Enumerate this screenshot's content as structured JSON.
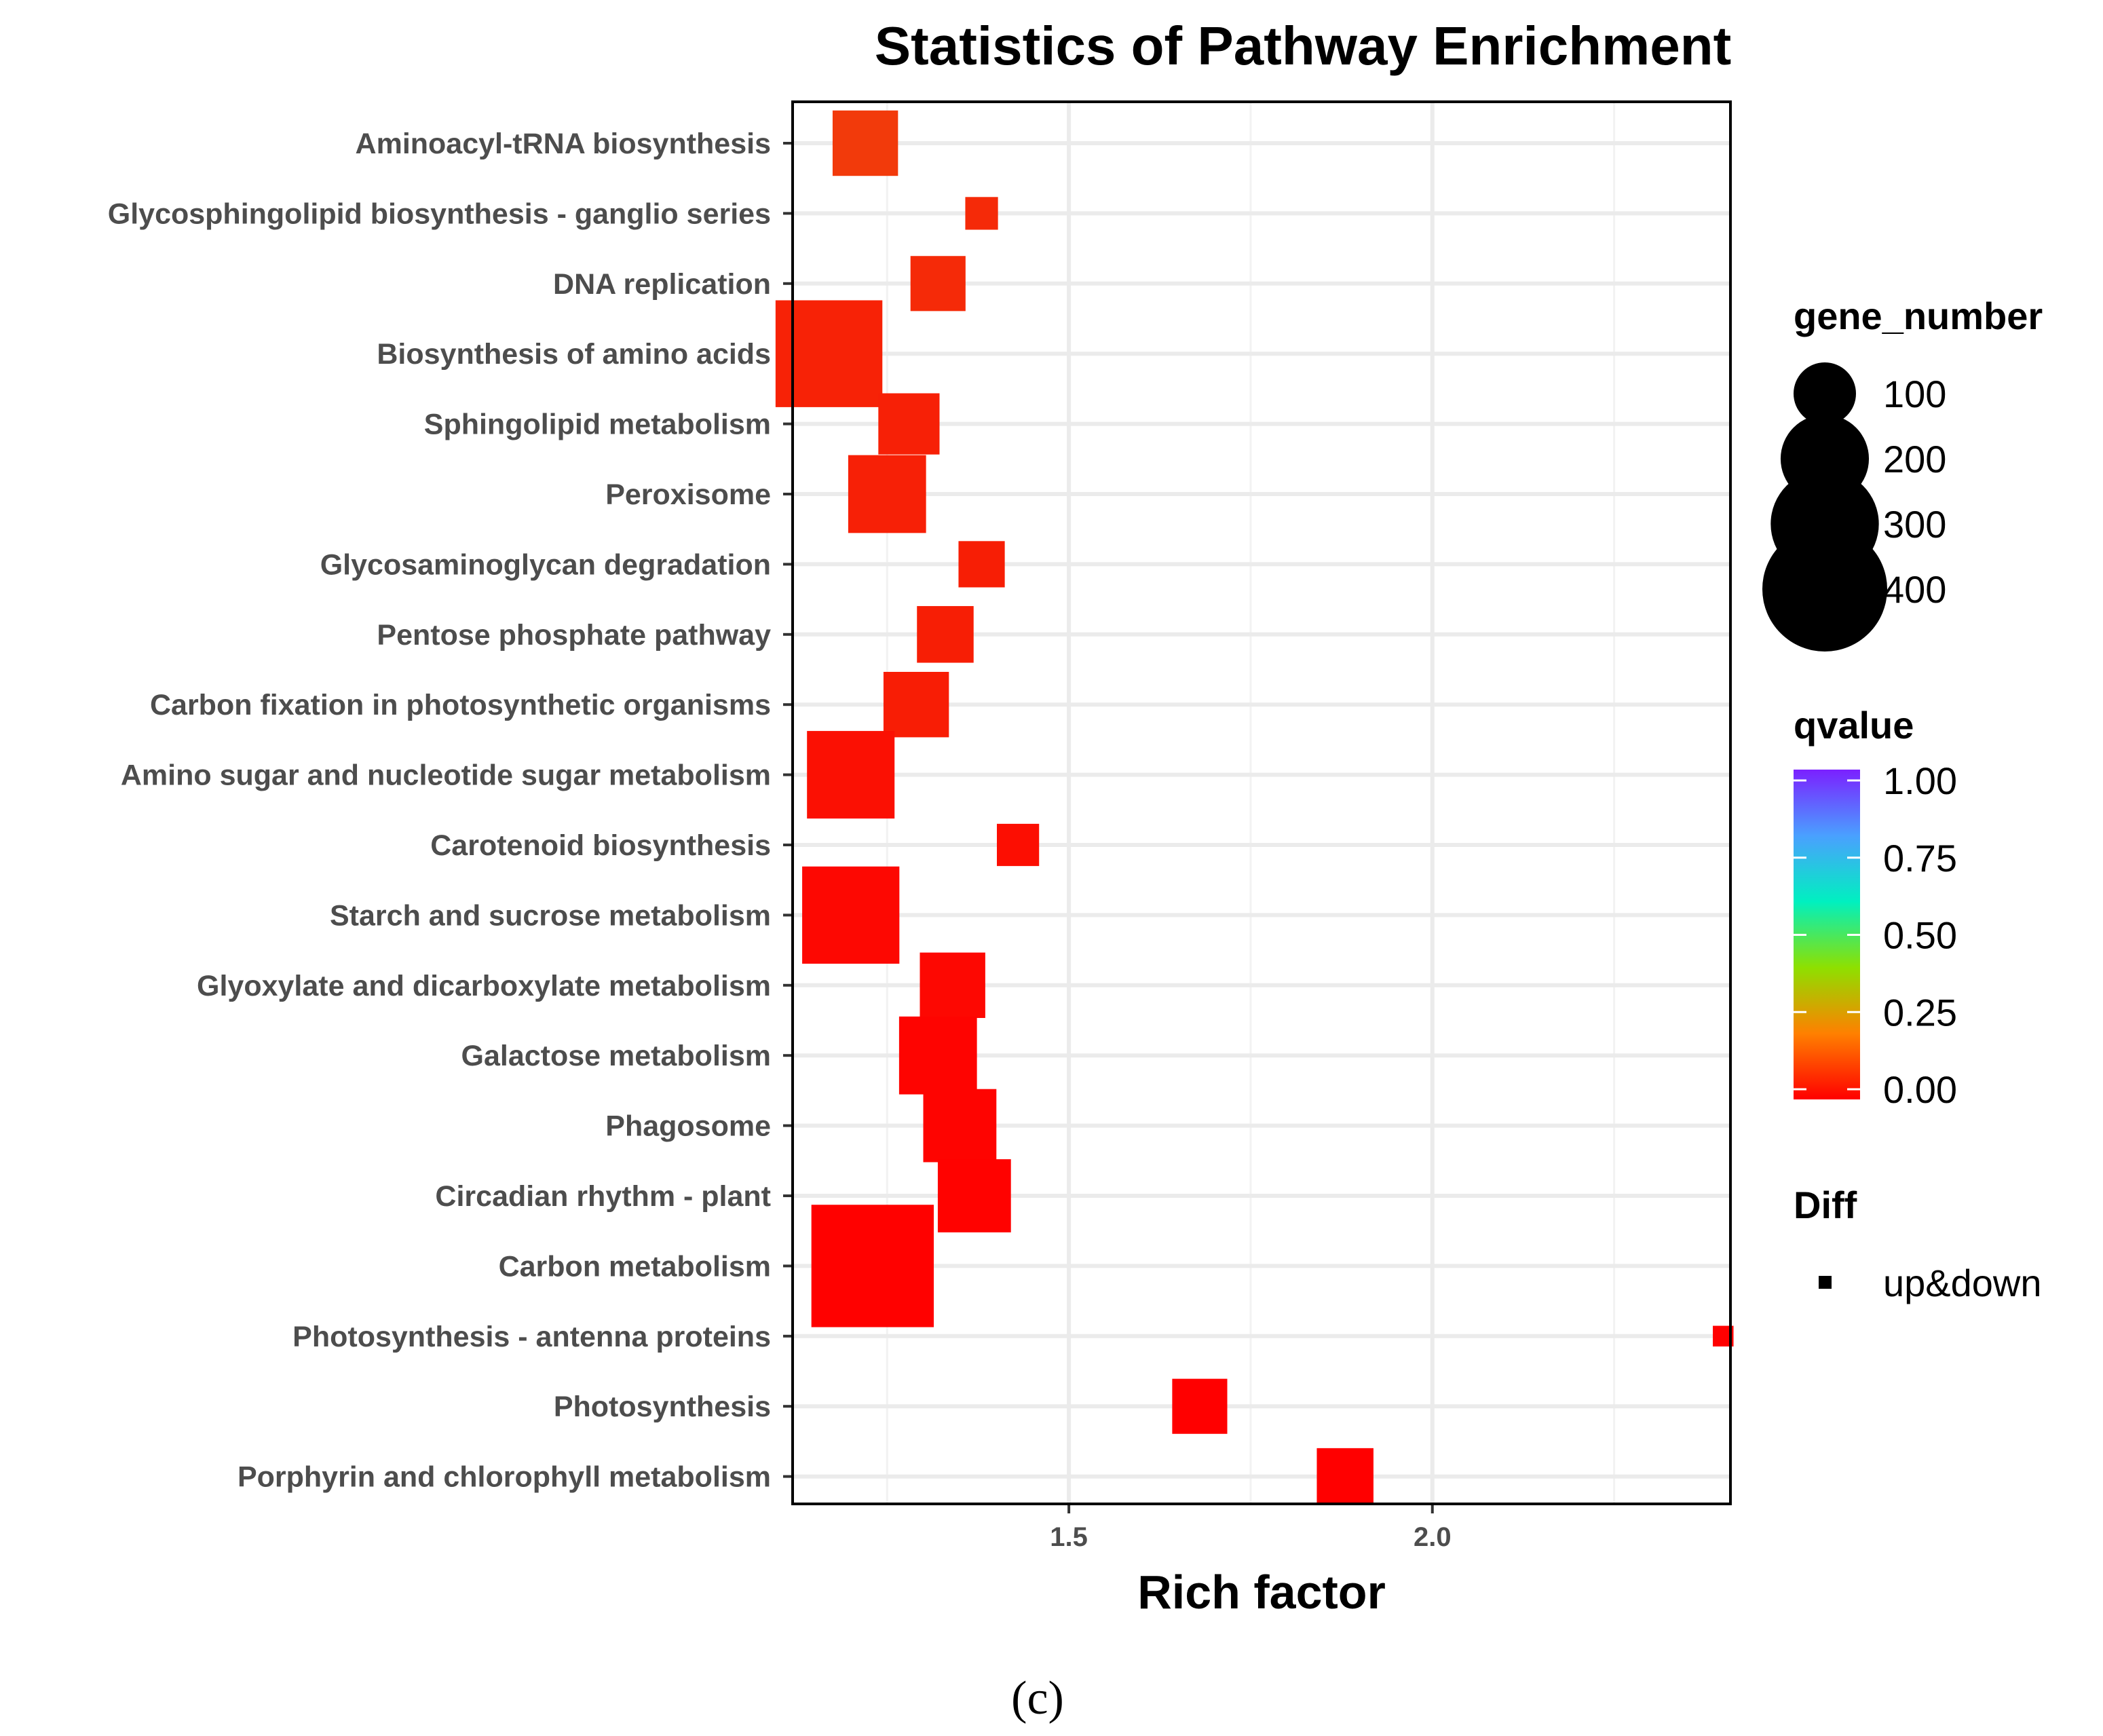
{
  "chart_data": {
    "type": "scatter",
    "title": "Statistics of Pathway Enrichment",
    "xlabel": "Rich factor",
    "ylabel": "",
    "xlim": [
      1.12,
      2.41
    ],
    "xticks": [
      1.5,
      2.0
    ],
    "xtick_labels": [
      "1.5",
      "2.0"
    ],
    "grid": true,
    "marker": "square",
    "categories": [
      "Aminoacyl-tRNA biosynthesis",
      "Glycosphingolipid biosynthesis - ganglio series",
      "DNA replication",
      "Biosynthesis of amino acids",
      "Sphingolipid metabolism",
      "Peroxisome",
      "Glycosaminoglycan degradation",
      "Pentose phosphate pathway",
      "Carbon fixation in photosynthetic organisms",
      "Amino sugar and nucleotide sugar metabolism",
      "Carotenoid biosynthesis",
      "Starch and sucrose metabolism",
      "Glyoxylate and dicarboxylate metabolism",
      "Galactose metabolism",
      "Phagosome",
      "Circadian rhythm - plant",
      "Carbon metabolism",
      "Photosynthesis - antenna proteins",
      "Photosynthesis",
      "Porphyrin and chlorophyll metabolism"
    ],
    "points": [
      {
        "x": 1.22,
        "gene_number": 120,
        "qvalue": 0.04,
        "color": "#f23a0b"
      },
      {
        "x": 1.38,
        "gene_number": 30,
        "qvalue": 0.02,
        "color": "#f52a08"
      },
      {
        "x": 1.32,
        "gene_number": 85,
        "qvalue": 0.02,
        "color": "#f52a08"
      },
      {
        "x": 1.17,
        "gene_number": 320,
        "qvalue": 0.01,
        "color": "#f72206"
      },
      {
        "x": 1.28,
        "gene_number": 105,
        "qvalue": 0.01,
        "color": "#f72006"
      },
      {
        "x": 1.25,
        "gene_number": 170,
        "qvalue": 0.01,
        "color": "#f72006"
      },
      {
        "x": 1.38,
        "gene_number": 60,
        "qvalue": 0.01,
        "color": "#f71e05"
      },
      {
        "x": 1.33,
        "gene_number": 90,
        "qvalue": 0.01,
        "color": "#f71e05"
      },
      {
        "x": 1.29,
        "gene_number": 120,
        "qvalue": 0.01,
        "color": "#f81d05"
      },
      {
        "x": 1.2,
        "gene_number": 215,
        "qvalue": 0.005,
        "color": "#fb1003"
      },
      {
        "x": 1.43,
        "gene_number": 50,
        "qvalue": 0.005,
        "color": "#fc0e02"
      },
      {
        "x": 1.2,
        "gene_number": 265,
        "qvalue": 0.002,
        "color": "#fd0802"
      },
      {
        "x": 1.34,
        "gene_number": 120,
        "qvalue": 0.002,
        "color": "#fd0802"
      },
      {
        "x": 1.32,
        "gene_number": 170,
        "qvalue": 0.001,
        "color": "#fe0401"
      },
      {
        "x": 1.35,
        "gene_number": 150,
        "qvalue": 0.001,
        "color": "#fe0401"
      },
      {
        "x": 1.37,
        "gene_number": 150,
        "qvalue": 0.0005,
        "color": "#ff0200"
      },
      {
        "x": 1.23,
        "gene_number": 420,
        "qvalue": 0.0003,
        "color": "#ff0100"
      },
      {
        "x": 2.4,
        "gene_number": 12,
        "qvalue": 0.0,
        "color": "#ff0000"
      },
      {
        "x": 1.68,
        "gene_number": 85,
        "qvalue": 0.0,
        "color": "#ff0000"
      },
      {
        "x": 1.88,
        "gene_number": 90,
        "qvalue": 0.0,
        "color": "#ff0000"
      }
    ],
    "legend": {
      "placement": "right",
      "size_title": "gene_number",
      "size_entries": [
        "100",
        "200",
        "300",
        "400"
      ],
      "size_values": [
        100,
        200,
        300,
        400
      ],
      "color_title": "qvalue",
      "color_ticks": [
        "1.00",
        "0.75",
        "0.50",
        "0.25",
        "0.00"
      ],
      "color_stops": [
        "#ff0000",
        "#ff8000",
        "#8ee000",
        "#00f0c0",
        "#4aa0ff",
        "#7b20ff"
      ],
      "shape_title": "Diff",
      "shape_entry": "up&down"
    }
  },
  "caption": "(c)"
}
